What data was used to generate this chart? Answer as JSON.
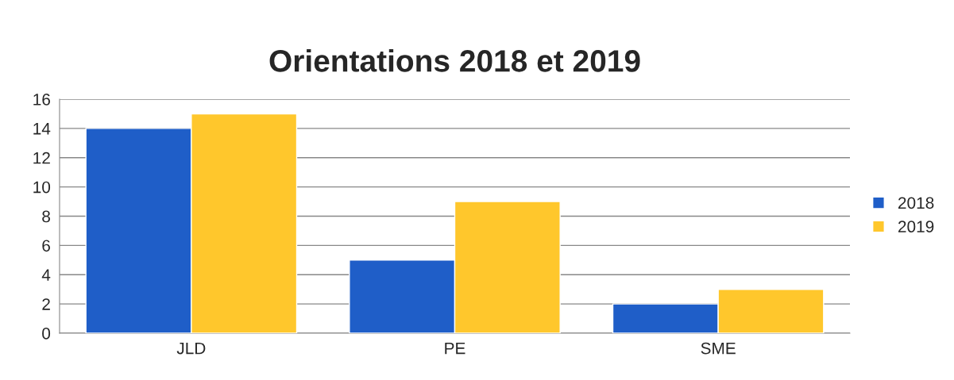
{
  "chart_data": {
    "type": "bar",
    "title": "Orientations 2018 et 2019",
    "categories": [
      "JLD",
      "PE",
      "SME"
    ],
    "series": [
      {
        "name": "2018",
        "color": "#1f5ec8",
        "values": [
          14,
          5,
          2
        ]
      },
      {
        "name": "2019",
        "color": "#ffc72c",
        "values": [
          15,
          9,
          3
        ]
      }
    ],
    "ylim": [
      0,
      16
    ],
    "yticks": [
      0,
      2,
      4,
      6,
      8,
      10,
      12,
      14,
      16
    ],
    "grid": "y",
    "legend": "right"
  }
}
